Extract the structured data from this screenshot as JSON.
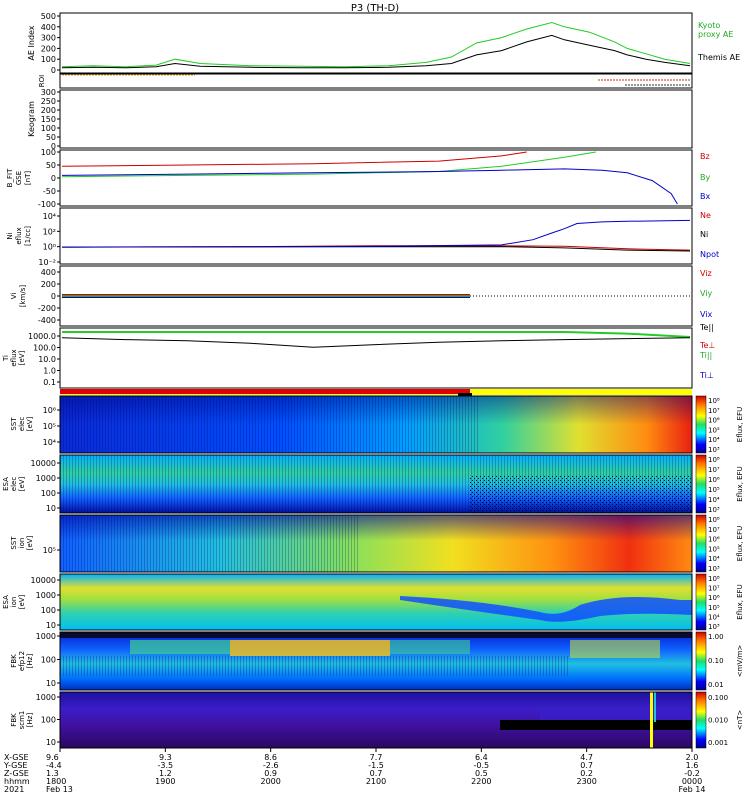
{
  "title": "P3 (TH-D)",
  "colors": {
    "kyoto": "#22cc22",
    "themis": "#000000",
    "bz": "#cc0000",
    "by": "#22cc22",
    "bx": "#0000cc",
    "red": "#cc0000",
    "green": "#22cc22",
    "blue": "#0000cc",
    "black": "#000000"
  },
  "panels": {
    "ae": {
      "ylabel": "AE Index",
      "ticks": [
        "500",
        "400",
        "300",
        "200",
        "100",
        "0"
      ],
      "legend": [
        "Kyoto",
        "proxy AE",
        "Themis AE"
      ]
    },
    "roi": {
      "ylabel": "ROI"
    },
    "keogram": {
      "ylabel": "Keogram",
      "ticks": [
        "300",
        "250",
        "200",
        "150",
        "100",
        "50",
        "0"
      ]
    },
    "bfield": {
      "ylabel": [
        "B_FIT",
        "GSE",
        "[nT]"
      ],
      "ticks": [
        "100",
        "50",
        "0",
        "-50",
        "-100"
      ],
      "legend": [
        "Bz",
        "By",
        "Bx"
      ]
    },
    "ni": {
      "ylabel": [
        "Ni",
        "eflux",
        "[1/cc]"
      ],
      "ticks": [
        "10⁴",
        "10²",
        "10⁰",
        "10⁻²"
      ],
      "legend": [
        "Ne",
        "Ni",
        "Npot"
      ]
    },
    "vi": {
      "ylabel": [
        "Vi",
        "[km/s]"
      ],
      "ticks": [
        "400",
        "200",
        "0",
        "-200",
        "-400"
      ],
      "legend": [
        "Viz",
        "Viy",
        "Vix"
      ]
    },
    "ti": {
      "ylabel": [
        "Ti",
        "eflux",
        "[eV]"
      ],
      "ticks": [
        "1000.0",
        "100.0",
        "10.0",
        "1.0",
        "0.1"
      ],
      "legend": [
        "Te||",
        "Te⊥",
        "Ti||",
        "Ti⊥"
      ]
    },
    "sst_e": {
      "ylabel": [
        "SST",
        "elec",
        "[eV]"
      ],
      "ticks": [
        "10⁶",
        "10⁵",
        "10⁴"
      ]
    },
    "esa_e": {
      "ylabel": [
        "ESA",
        "elec",
        "[eV]"
      ],
      "ticks": [
        "10000",
        "1000",
        "100",
        "10"
      ]
    },
    "sst_i": {
      "ylabel": [
        "SST",
        "ion",
        "[eV]"
      ],
      "ticks": [
        "10⁵"
      ]
    },
    "esa_i": {
      "ylabel": [
        "ESA",
        "ion",
        "[eV]"
      ],
      "ticks": [
        "10000",
        "1000",
        "100",
        "10"
      ]
    },
    "fbk_e": {
      "ylabel": [
        "FBK",
        "efp12",
        "[Hz]"
      ],
      "ticks": [
        "1000",
        "100",
        "10"
      ]
    },
    "fbk_b": {
      "ylabel": [
        "FBK",
        "scm1",
        "[Hz]"
      ],
      "ticks": [
        "1000",
        "100",
        "10"
      ]
    }
  },
  "colorbars": {
    "eflux_label": "Eflux, EFU",
    "eflux_ticks": [
      "10⁸",
      "10⁷",
      "10⁶",
      "10⁵",
      "10⁴",
      "10³"
    ],
    "fbk_e_label": "<mV/m>",
    "fbk_e_ticks": [
      "1.00",
      "0.10",
      "0.01"
    ],
    "fbk_b_label": "<nT>",
    "fbk_b_ticks": [
      "0.100",
      "0.010",
      "0.001"
    ]
  },
  "xaxis": {
    "row_labels": [
      "X-GSE",
      "Y-GSE",
      "Z-GSE",
      "hhmm",
      "2021"
    ],
    "columns": [
      {
        "x": "9.6",
        "y": "-4.4",
        "z": "1.3",
        "t": "1800",
        "d": "Feb 13"
      },
      {
        "x": "9.3",
        "y": "-3.5",
        "z": "1.2",
        "t": "1900",
        "d": ""
      },
      {
        "x": "8.6",
        "y": "-2.6",
        "z": "0.9",
        "t": "2000",
        "d": ""
      },
      {
        "x": "7.7",
        "y": "-1.5",
        "z": "0.7",
        "t": "2100",
        "d": ""
      },
      {
        "x": "6.4",
        "y": "-0.5",
        "z": "0.5",
        "t": "2200",
        "d": ""
      },
      {
        "x": "4.7",
        "y": "0.7",
        "z": "0.2",
        "t": "2300",
        "d": ""
      },
      {
        "x": "2.0",
        "y": "1.6",
        "z": "-0.2",
        "t": "0000",
        "d": "Feb 14"
      }
    ]
  },
  "chart_data": [
    {
      "type": "line",
      "ylabel": "AE Index",
      "ylim": [
        0,
        500
      ],
      "x": [
        "1800",
        "1900",
        "2000",
        "2100",
        "2200",
        "2300",
        "0000"
      ],
      "series": [
        {
          "name": "Kyoto proxy AE",
          "x": [
            0,
            0.05,
            0.1,
            0.15,
            0.18,
            0.22,
            0.3,
            0.38,
            0.45,
            0.52,
            0.58,
            0.62,
            0.66,
            0.7,
            0.74,
            0.78,
            0.8,
            0.84,
            0.88,
            0.9,
            0.93,
            0.96,
            1
          ],
          "values": [
            30,
            40,
            30,
            45,
            100,
            60,
            40,
            35,
            30,
            40,
            70,
            120,
            250,
            300,
            380,
            440,
            400,
            350,
            260,
            200,
            150,
            100,
            60
          ]
        },
        {
          "name": "Themis AE",
          "x": [
            0,
            0.05,
            0.1,
            0.15,
            0.18,
            0.22,
            0.3,
            0.38,
            0.45,
            0.52,
            0.58,
            0.62,
            0.66,
            0.7,
            0.74,
            0.78,
            0.8,
            0.84,
            0.88,
            0.9,
            0.93,
            0.96,
            1
          ],
          "values": [
            20,
            25,
            20,
            30,
            60,
            35,
            25,
            20,
            20,
            25,
            40,
            60,
            140,
            180,
            260,
            320,
            280,
            230,
            180,
            140,
            100,
            70,
            40
          ]
        }
      ]
    },
    {
      "type": "line",
      "ylabel": "B_FIT GSE [nT]",
      "ylim": [
        -100,
        100
      ],
      "series": [
        {
          "name": "Bz",
          "x": [
            0,
            0.2,
            0.4,
            0.6,
            0.7,
            0.74
          ],
          "values": [
            45,
            50,
            55,
            65,
            85,
            100
          ]
        },
        {
          "name": "By",
          "x": [
            0,
            0.2,
            0.4,
            0.6,
            0.7,
            0.8,
            0.85
          ],
          "values": [
            5,
            10,
            15,
            25,
            45,
            80,
            100
          ]
        },
        {
          "name": "Bx",
          "x": [
            0,
            0.2,
            0.4,
            0.6,
            0.7,
            0.8,
            0.86,
            0.9,
            0.94,
            0.97,
            0.98
          ],
          "values": [
            10,
            15,
            20,
            25,
            30,
            35,
            30,
            20,
            -10,
            -60,
            -100
          ]
        }
      ]
    },
    {
      "type": "line",
      "ylabel": "Ni eflux [1/cc]",
      "yscale": "log",
      "ylim": [
        0.01,
        100000
      ],
      "series": [
        {
          "name": "Ne",
          "x": [
            0,
            0.3,
            0.5,
            0.7,
            0.8,
            0.9,
            1
          ],
          "values": [
            1,
            1.2,
            1.5,
            1.5,
            1.3,
            0.6,
            0.4
          ]
        },
        {
          "name": "Ni",
          "x": [
            0,
            0.3,
            0.5,
            0.7,
            0.75,
            0.78,
            0.8,
            0.82,
            0.86,
            0.9,
            1
          ],
          "values": [
            1,
            1.1,
            1.3,
            2,
            10,
            80,
            300,
            1500,
            2500,
            3000,
            4000
          ]
        },
        {
          "name": "Npot",
          "x": [
            0,
            0.5,
            0.7,
            0.8,
            0.9,
            1
          ],
          "values": [
            1,
            1.1,
            1.2,
            0.8,
            0.4,
            0.3
          ]
        }
      ]
    },
    {
      "type": "line",
      "ylabel": "Vi [km/s]",
      "ylim": [
        -500,
        400
      ],
      "series": [
        {
          "name": "Viz",
          "x": [
            0,
            0.65
          ],
          "values": [
            0,
            0
          ]
        },
        {
          "name": "Viy",
          "x": [
            0,
            0.65
          ],
          "values": [
            0,
            0
          ]
        },
        {
          "name": "Vix",
          "x": [
            0,
            0.65
          ],
          "values": [
            0,
            0
          ]
        }
      ]
    },
    {
      "type": "line",
      "ylabel": "Ti eflux [eV]",
      "yscale": "log",
      "ylim": [
        0.1,
        2000
      ],
      "series": [
        {
          "name": "Te||",
          "x": [
            0,
            0.2,
            0.4,
            0.6,
            0.8,
            0.9,
            1
          ],
          "values": [
            2000,
            2000,
            2000,
            2000,
            2000,
            1500,
            800
          ]
        },
        {
          "name": "Ti",
          "x": [
            0,
            0.1,
            0.2,
            0.3,
            0.4,
            0.5,
            0.6,
            0.7,
            0.8,
            0.9,
            1
          ],
          "values": [
            700,
            500,
            400,
            250,
            120,
            200,
            300,
            400,
            500,
            600,
            700
          ]
        }
      ]
    },
    {
      "type": "heatmap",
      "ylabel": "SST elec [eV]",
      "colorbar": "Eflux, EFU"
    },
    {
      "type": "heatmap",
      "ylabel": "ESA elec [eV]",
      "colorbar": "Eflux, EFU"
    },
    {
      "type": "heatmap",
      "ylabel": "SST ion [eV]",
      "colorbar": "Eflux, EFU"
    },
    {
      "type": "heatmap",
      "ylabel": "ESA ion [eV]",
      "colorbar": "Eflux, EFU"
    },
    {
      "type": "heatmap",
      "ylabel": "FBK efp12 [Hz]",
      "colorbar": "<mV/m>"
    },
    {
      "type": "heatmap",
      "ylabel": "FBK scm1 [Hz]",
      "colorbar": "<nT>"
    }
  ]
}
